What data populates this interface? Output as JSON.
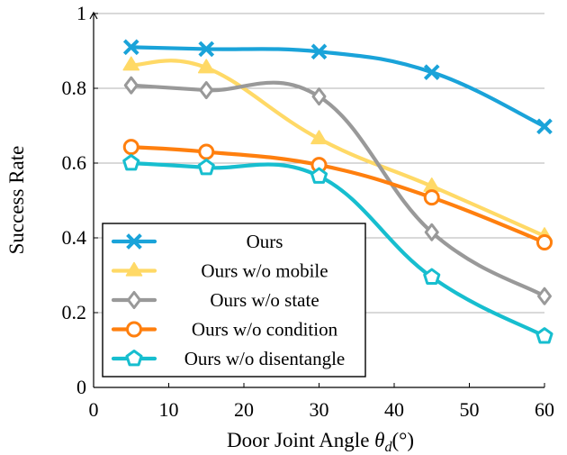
{
  "chart_data": {
    "type": "line",
    "title": "",
    "xlabel_text": "Door Joint Angle ",
    "xlabel_symbol": "θ",
    "xlabel_subscript": "d",
    "xlabel_unit": "(°)",
    "ylabel": "Success Rate",
    "xlim": [
      0,
      60
    ],
    "ylim": [
      0,
      1
    ],
    "x_ticks": [
      0,
      10,
      20,
      30,
      40,
      50,
      60
    ],
    "y_ticks": [
      0,
      0.2,
      0.4,
      0.6,
      0.8,
      1
    ],
    "y_tick_labels": [
      "0",
      "0.2",
      "0.4",
      "0.6",
      "0.8",
      "1"
    ],
    "grid": "horizontal",
    "legend_position": "bottom-left",
    "x": [
      5,
      15,
      30,
      45,
      60
    ],
    "series": [
      {
        "name": "Ours",
        "color": "#1aa3d9",
        "marker": "cross",
        "values": [
          0.91,
          0.905,
          0.898,
          0.843,
          0.698
        ]
      },
      {
        "name": "Ours w/o mobile",
        "color": "#ffd966",
        "marker": "triangle",
        "values": [
          0.862,
          0.855,
          0.665,
          0.538,
          0.405
        ]
      },
      {
        "name": "Ours w/o state",
        "color": "#999999",
        "marker": "diamond",
        "values": [
          0.808,
          0.795,
          0.778,
          0.415,
          0.244
        ]
      },
      {
        "name": "Ours w/o condition",
        "color": "#ff7f0e",
        "marker": "circle",
        "values": [
          0.643,
          0.63,
          0.595,
          0.508,
          0.388
        ]
      },
      {
        "name": "Ours w/o disentangle",
        "color": "#17becf",
        "marker": "pentagon",
        "values": [
          0.6,
          0.588,
          0.565,
          0.295,
          0.137
        ]
      }
    ]
  }
}
